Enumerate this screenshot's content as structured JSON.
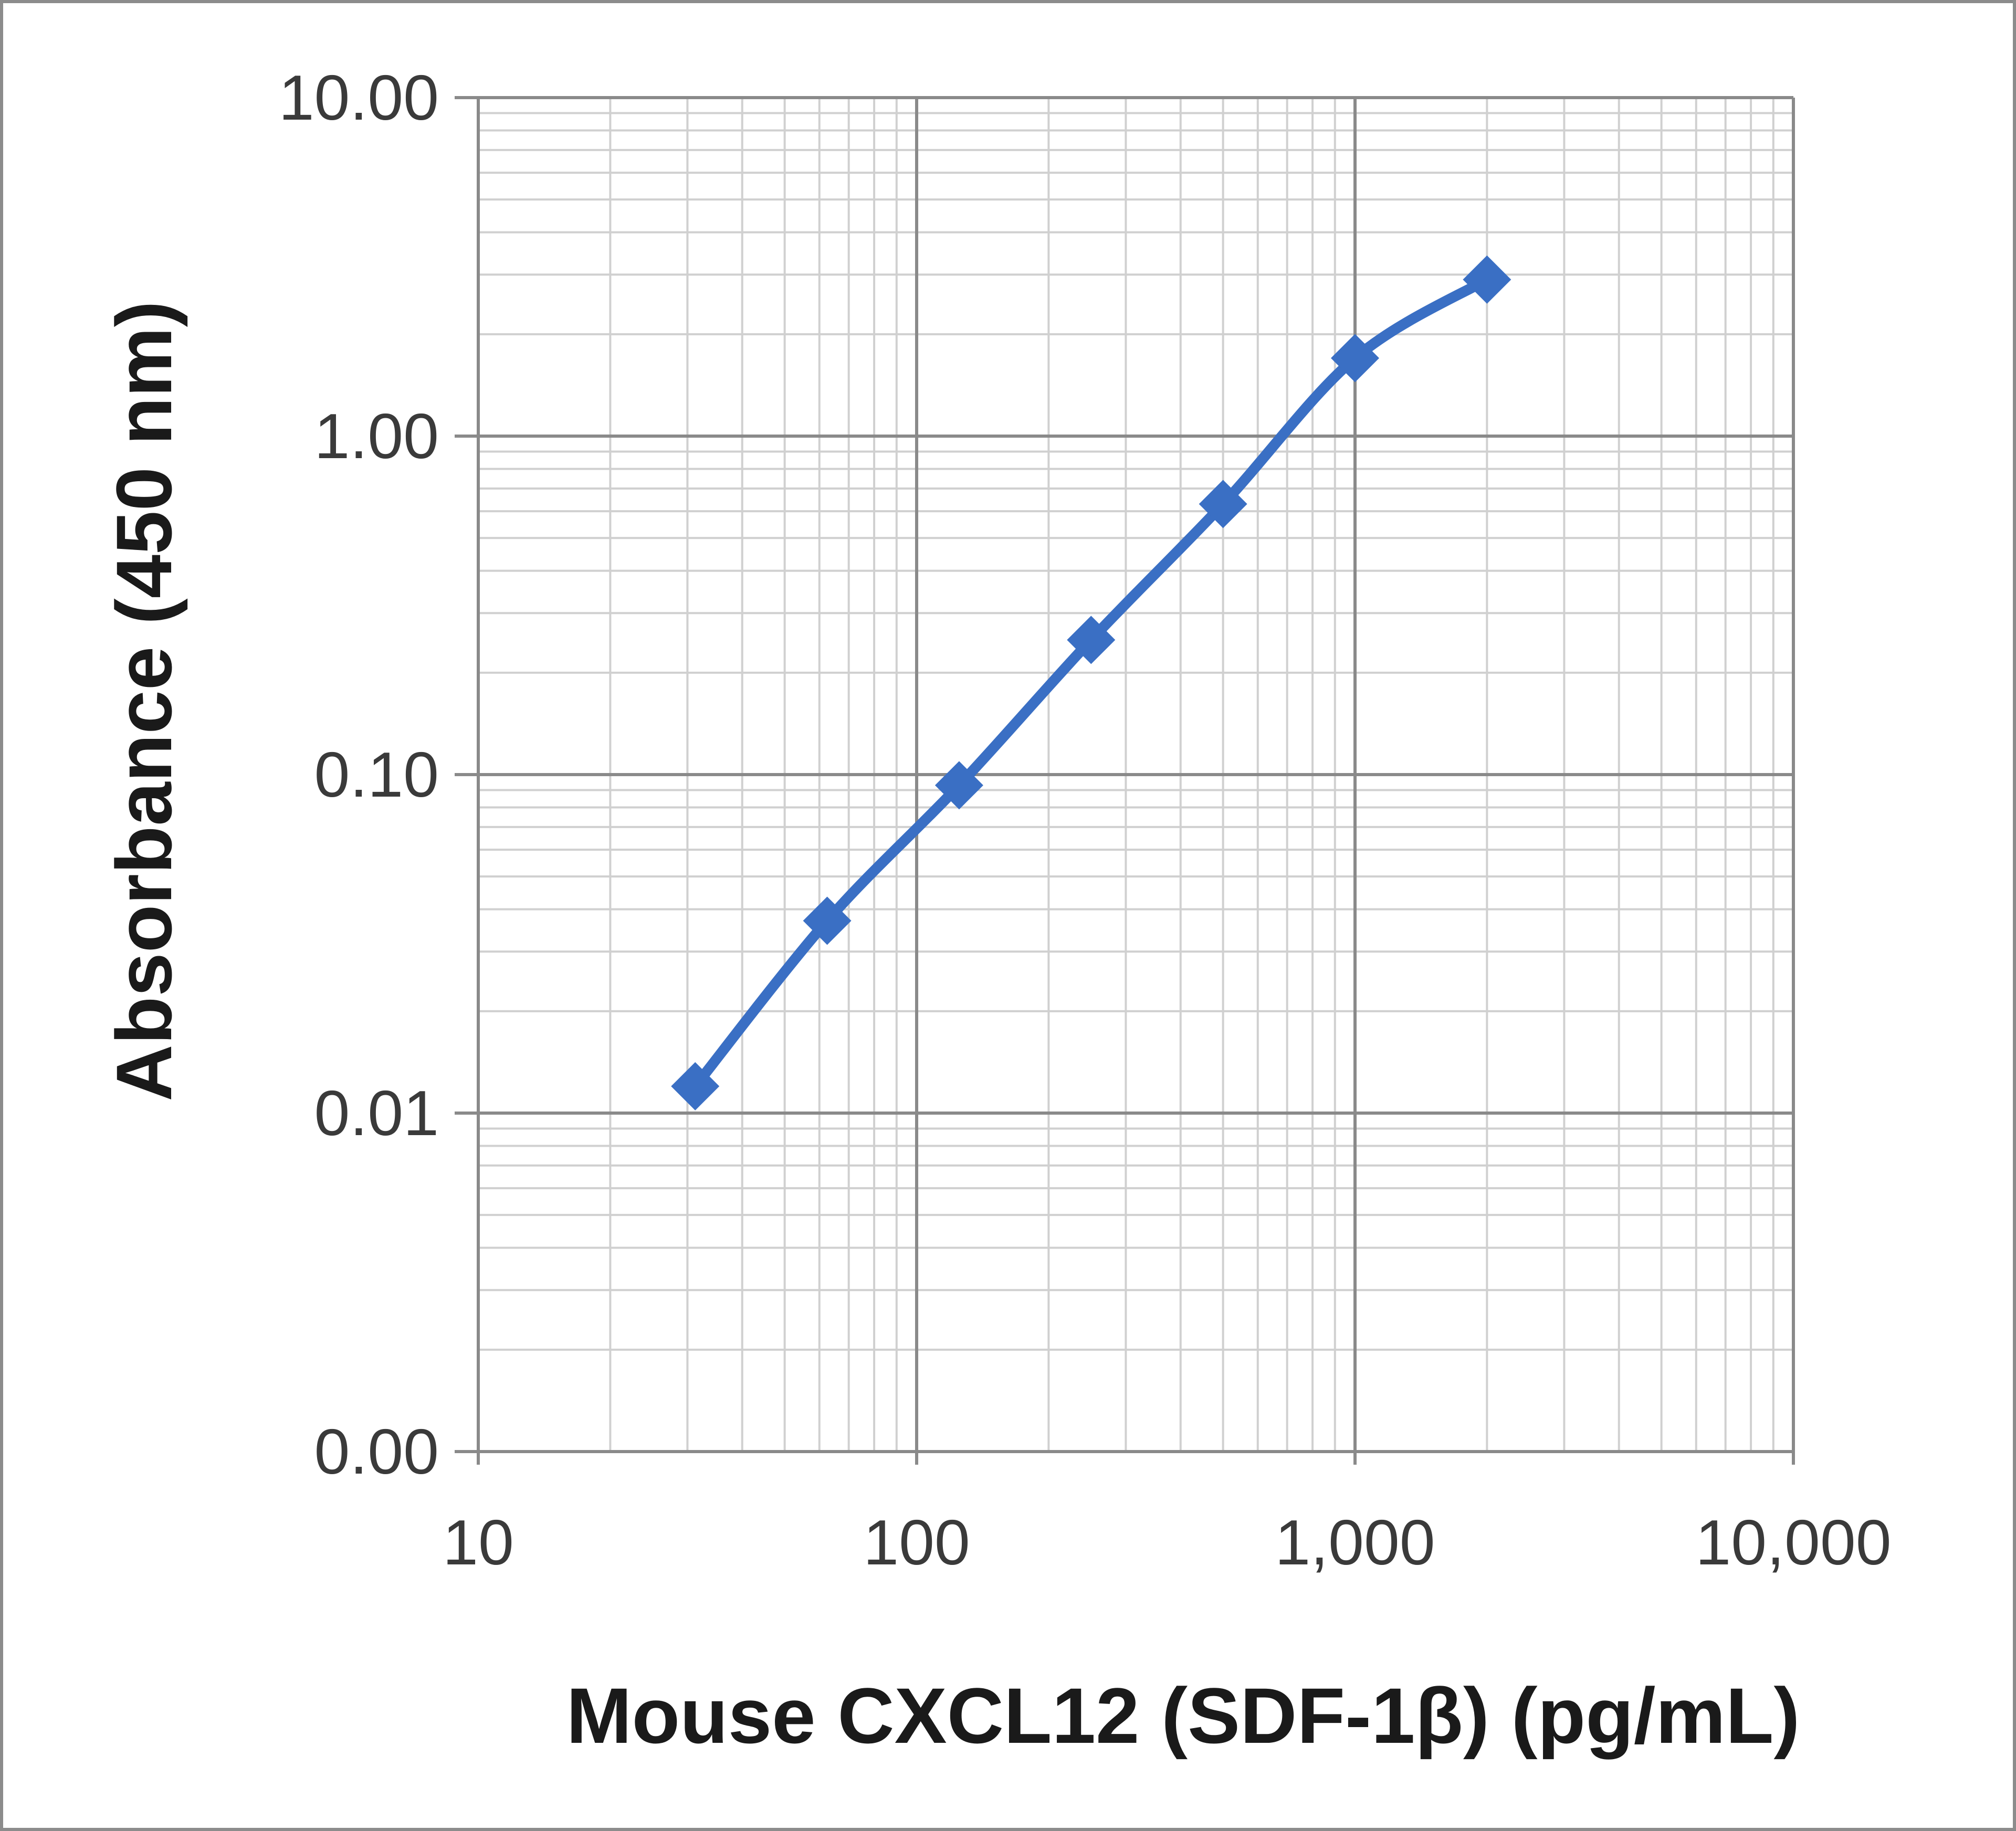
{
  "chart_data": {
    "type": "line",
    "title": "",
    "xlabel": "Mouse CXCL12 (SDF-1β) (pg/mL)",
    "ylabel": "Absorbance  (450 nm)",
    "xscale": "log",
    "yscale": "log",
    "xlim": [
      10,
      10000
    ],
    "ylim": [
      0.001,
      10
    ],
    "x_ticks": [
      {
        "value": 10,
        "label": "10"
      },
      {
        "value": 100,
        "label": "100"
      },
      {
        "value": 1000,
        "label": "1,000"
      },
      {
        "value": 10000,
        "label": "10,000"
      }
    ],
    "y_ticks": [
      {
        "value": 0.001,
        "label": "0.00"
      },
      {
        "value": 0.01,
        "label": "0.01"
      },
      {
        "value": 0.1,
        "label": "0.10"
      },
      {
        "value": 1,
        "label": "1.00"
      },
      {
        "value": 10,
        "label": "10.00"
      }
    ],
    "grid": true,
    "legend": "none",
    "series": [
      {
        "color": "#3a6fc4",
        "marker": "diamond",
        "x": [
          31.25,
          62.5,
          125,
          250,
          500,
          1000,
          2000
        ],
        "y": [
          0.012,
          0.037,
          0.093,
          0.25,
          0.63,
          1.7,
          2.9
        ]
      }
    ]
  },
  "colors": {
    "grid_major": "#8a8a8a",
    "grid_minor": "#d0d0d0",
    "series": "#3a6fc4"
  }
}
